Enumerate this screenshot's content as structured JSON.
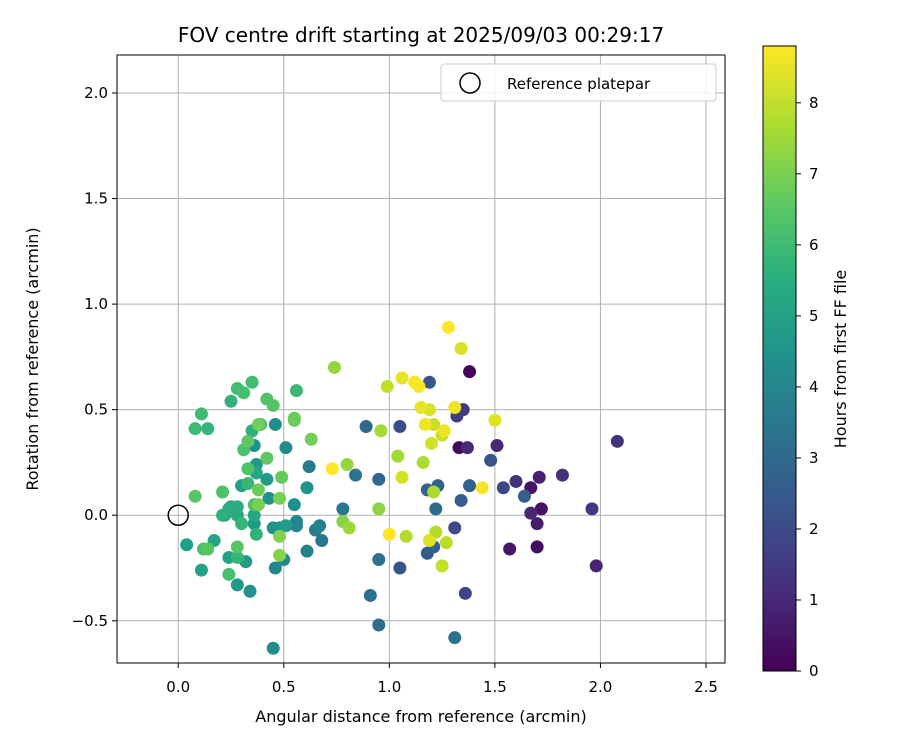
{
  "chart_data": {
    "type": "scatter",
    "title": "FOV centre drift starting at 2025/09/03 00:29:17",
    "xlabel": "Angular distance from reference (arcmin)",
    "ylabel": "Rotation from reference (arcmin)",
    "xlim": [
      -0.29,
      2.59
    ],
    "ylim": [
      -0.7,
      2.18
    ],
    "xticks": [
      0.0,
      0.5,
      1.0,
      1.5,
      2.0,
      2.5
    ],
    "xtick_labels": [
      "0.0",
      "0.5",
      "1.0",
      "1.5",
      "2.0",
      "2.5"
    ],
    "yticks": [
      -0.5,
      0.0,
      0.5,
      1.0,
      1.5,
      2.0
    ],
    "ytick_labels": [
      "−0.5",
      "0.0",
      "0.5",
      "1.0",
      "1.5",
      "2.0"
    ],
    "grid": true,
    "legend": {
      "position": "top-right",
      "entries": [
        "Reference platepar"
      ]
    },
    "reference_point": {
      "x": 0.0,
      "y": 0.0,
      "label": "Reference platepar"
    },
    "colorbar": {
      "label": "Hours from first FF file",
      "colormap": "viridis",
      "range": [
        0,
        8.8
      ],
      "ticks": [
        0,
        1,
        2,
        3,
        4,
        5,
        6,
        7,
        8
      ],
      "tick_labels": [
        "0",
        "1",
        "2",
        "3",
        "4",
        "5",
        "6",
        "7",
        "8"
      ]
    },
    "points": [
      {
        "x": 1.38,
        "y": 0.68,
        "h": 0.1
      },
      {
        "x": 1.33,
        "y": 0.32,
        "h": 0.2
      },
      {
        "x": 1.7,
        "y": -0.15,
        "h": 0.3
      },
      {
        "x": 1.72,
        "y": 0.03,
        "h": 0.4
      },
      {
        "x": 1.67,
        "y": 0.13,
        "h": 0.5
      },
      {
        "x": 1.57,
        "y": -0.16,
        "h": 0.6
      },
      {
        "x": 1.7,
        "y": -0.04,
        "h": 0.7
      },
      {
        "x": 1.71,
        "y": 0.18,
        "h": 0.8
      },
      {
        "x": 1.98,
        "y": -0.24,
        "h": 0.9
      },
      {
        "x": 1.51,
        "y": 0.33,
        "h": 1.0
      },
      {
        "x": 1.67,
        "y": 0.01,
        "h": 1.0
      },
      {
        "x": 1.37,
        "y": 0.32,
        "h": 1.1
      },
      {
        "x": 1.6,
        "y": 0.16,
        "h": 1.3
      },
      {
        "x": 1.82,
        "y": 0.19,
        "h": 1.3
      },
      {
        "x": 2.08,
        "y": 0.35,
        "h": 1.3
      },
      {
        "x": 1.96,
        "y": 0.03,
        "h": 1.4
      },
      {
        "x": 1.35,
        "y": 0.5,
        "h": 1.5
      },
      {
        "x": 1.32,
        "y": 0.47,
        "h": 1.6
      },
      {
        "x": 1.36,
        "y": -0.37,
        "h": 1.8
      },
      {
        "x": 1.54,
        "y": 0.13,
        "h": 1.9
      },
      {
        "x": 1.31,
        "y": -0.06,
        "h": 2.0
      },
      {
        "x": 1.05,
        "y": 0.42,
        "h": 2.1
      },
      {
        "x": 1.48,
        "y": 0.26,
        "h": 2.3
      },
      {
        "x": 1.05,
        "y": -0.25,
        "h": 2.3
      },
      {
        "x": 1.19,
        "y": 0.63,
        "h": 2.4
      },
      {
        "x": 1.18,
        "y": -0.18,
        "h": 2.5
      },
      {
        "x": 1.34,
        "y": 0.07,
        "h": 2.6
      },
      {
        "x": 1.64,
        "y": 0.09,
        "h": 2.6
      },
      {
        "x": 1.38,
        "y": 0.14,
        "h": 2.7
      },
      {
        "x": 1.21,
        "y": -0.15,
        "h": 2.7
      },
      {
        "x": 1.18,
        "y": 0.12,
        "h": 2.8
      },
      {
        "x": 1.23,
        "y": 0.14,
        "h": 2.8
      },
      {
        "x": 0.95,
        "y": 0.17,
        "h": 2.9
      },
      {
        "x": 0.89,
        "y": 0.42,
        "h": 3.0
      },
      {
        "x": 1.22,
        "y": 0.03,
        "h": 3.1
      },
      {
        "x": 0.95,
        "y": -0.52,
        "h": 3.1
      },
      {
        "x": 0.91,
        "y": -0.38,
        "h": 3.2
      },
      {
        "x": 0.95,
        "y": -0.21,
        "h": 3.3
      },
      {
        "x": 1.31,
        "y": -0.58,
        "h": 3.3
      },
      {
        "x": 0.84,
        "y": 0.19,
        "h": 3.4
      },
      {
        "x": 0.68,
        "y": -0.12,
        "h": 3.5
      },
      {
        "x": 0.78,
        "y": 0.03,
        "h": 3.5
      },
      {
        "x": 0.62,
        "y": 0.23,
        "h": 3.6
      },
      {
        "x": 0.65,
        "y": -0.07,
        "h": 3.7
      },
      {
        "x": 0.67,
        "y": -0.05,
        "h": 3.8
      },
      {
        "x": 0.61,
        "y": -0.17,
        "h": 3.9
      },
      {
        "x": 0.56,
        "y": -0.03,
        "h": 4.0
      },
      {
        "x": 0.56,
        "y": -0.05,
        "h": 4.0
      },
      {
        "x": 0.46,
        "y": -0.25,
        "h": 4.1
      },
      {
        "x": 0.5,
        "y": -0.21,
        "h": 4.1
      },
      {
        "x": 0.45,
        "y": -0.63,
        "h": 4.2
      },
      {
        "x": 0.51,
        "y": 0.32,
        "h": 4.2
      },
      {
        "x": 0.48,
        "y": -0.06,
        "h": 4.3
      },
      {
        "x": 0.46,
        "y": 0.43,
        "h": 4.3
      },
      {
        "x": 0.36,
        "y": 0.33,
        "h": 4.4
      },
      {
        "x": 0.55,
        "y": 0.05,
        "h": 4.4
      },
      {
        "x": 0.43,
        "y": 0.08,
        "h": 4.5
      },
      {
        "x": 0.61,
        "y": 0.13,
        "h": 4.5
      },
      {
        "x": 0.34,
        "y": -0.36,
        "h": 4.5
      },
      {
        "x": 0.45,
        "y": -0.06,
        "h": 4.6
      },
      {
        "x": 0.36,
        "y": -0.04,
        "h": 4.7
      },
      {
        "x": 0.37,
        "y": 0.24,
        "h": 4.7
      },
      {
        "x": 0.32,
        "y": -0.22,
        "h": 4.8
      },
      {
        "x": 0.28,
        "y": -0.33,
        "h": 4.8
      },
      {
        "x": 0.51,
        "y": -0.05,
        "h": 4.9
      },
      {
        "x": 0.42,
        "y": 0.17,
        "h": 4.9
      },
      {
        "x": 0.3,
        "y": 0.14,
        "h": 5.0
      },
      {
        "x": 0.04,
        "y": -0.14,
        "h": 5.0
      },
      {
        "x": 0.11,
        "y": -0.26,
        "h": 5.1
      },
      {
        "x": 0.24,
        "y": -0.2,
        "h": 5.1
      },
      {
        "x": 0.17,
        "y": -0.12,
        "h": 5.2
      },
      {
        "x": 0.22,
        "y": 0.0,
        "h": 5.2
      },
      {
        "x": 0.36,
        "y": 0.0,
        "h": 5.3
      },
      {
        "x": 0.37,
        "y": 0.2,
        "h": 5.3
      },
      {
        "x": 0.28,
        "y": 0.0,
        "h": 5.4
      },
      {
        "x": 0.25,
        "y": 0.04,
        "h": 5.4
      },
      {
        "x": 0.28,
        "y": 0.04,
        "h": 5.5
      },
      {
        "x": 0.24,
        "y": 0.03,
        "h": 5.5
      },
      {
        "x": 0.35,
        "y": 0.4,
        "h": 5.6
      },
      {
        "x": 0.21,
        "y": 0.0,
        "h": 5.6
      },
      {
        "x": 0.37,
        "y": -0.09,
        "h": 5.7
      },
      {
        "x": 0.25,
        "y": 0.54,
        "h": 5.7
      },
      {
        "x": 0.14,
        "y": 0.41,
        "h": 5.8
      },
      {
        "x": 0.28,
        "y": -0.2,
        "h": 5.8
      },
      {
        "x": 0.3,
        "y": -0.04,
        "h": 5.8
      },
      {
        "x": 0.33,
        "y": 0.15,
        "h": 5.9
      },
      {
        "x": 0.56,
        "y": 0.59,
        "h": 5.9
      },
      {
        "x": 0.08,
        "y": 0.41,
        "h": 6.0
      },
      {
        "x": 0.11,
        "y": 0.48,
        "h": 6.0
      },
      {
        "x": 0.39,
        "y": 0.43,
        "h": 6.1
      },
      {
        "x": 0.28,
        "y": 0.6,
        "h": 6.1
      },
      {
        "x": 0.35,
        "y": 0.63,
        "h": 6.1
      },
      {
        "x": 0.31,
        "y": 0.58,
        "h": 6.2
      },
      {
        "x": 0.24,
        "y": -0.28,
        "h": 6.2
      },
      {
        "x": 0.12,
        "y": -0.16,
        "h": 6.2
      },
      {
        "x": 0.21,
        "y": 0.11,
        "h": 6.3
      },
      {
        "x": 0.31,
        "y": 0.31,
        "h": 6.3
      },
      {
        "x": 0.36,
        "y": 0.05,
        "h": 6.3
      },
      {
        "x": 0.33,
        "y": 0.22,
        "h": 6.4
      },
      {
        "x": 0.42,
        "y": 0.55,
        "h": 6.4
      },
      {
        "x": 0.45,
        "y": 0.52,
        "h": 6.4
      },
      {
        "x": 0.08,
        "y": 0.09,
        "h": 6.5
      },
      {
        "x": 0.14,
        "y": -0.16,
        "h": 6.5
      },
      {
        "x": 0.28,
        "y": -0.15,
        "h": 6.5
      },
      {
        "x": 0.33,
        "y": 0.35,
        "h": 6.6
      },
      {
        "x": 0.42,
        "y": 0.27,
        "h": 6.6
      },
      {
        "x": 0.55,
        "y": 0.45,
        "h": 6.7
      },
      {
        "x": 0.49,
        "y": 0.18,
        "h": 6.7
      },
      {
        "x": 0.38,
        "y": 0.12,
        "h": 6.8
      },
      {
        "x": 0.55,
        "y": 0.46,
        "h": 6.8
      },
      {
        "x": 0.63,
        "y": 0.36,
        "h": 6.9
      },
      {
        "x": 0.38,
        "y": 0.43,
        "h": 6.9
      },
      {
        "x": 0.38,
        "y": 0.05,
        "h": 7.0
      },
      {
        "x": 0.48,
        "y": 0.08,
        "h": 7.0
      },
      {
        "x": 0.48,
        "y": -0.1,
        "h": 7.1
      },
      {
        "x": 0.48,
        "y": -0.19,
        "h": 7.2
      },
      {
        "x": 0.78,
        "y": -0.03,
        "h": 7.2
      },
      {
        "x": 0.95,
        "y": 0.03,
        "h": 7.3
      },
      {
        "x": 0.74,
        "y": 0.7,
        "h": 7.4
      },
      {
        "x": 0.8,
        "y": 0.24,
        "h": 7.4
      },
      {
        "x": 0.81,
        "y": -0.06,
        "h": 7.5
      },
      {
        "x": 0.96,
        "y": 0.4,
        "h": 7.6
      },
      {
        "x": 1.04,
        "y": 0.28,
        "h": 7.6
      },
      {
        "x": 1.21,
        "y": 0.11,
        "h": 7.7
      },
      {
        "x": 1.16,
        "y": 0.25,
        "h": 7.7
      },
      {
        "x": 1.08,
        "y": -0.1,
        "h": 7.8
      },
      {
        "x": 1.22,
        "y": -0.08,
        "h": 7.8
      },
      {
        "x": 1.27,
        "y": -0.13,
        "h": 7.9
      },
      {
        "x": 1.25,
        "y": -0.24,
        "h": 8.0
      },
      {
        "x": 0.99,
        "y": 0.61,
        "h": 8.0
      },
      {
        "x": 1.21,
        "y": 0.43,
        "h": 8.1
      },
      {
        "x": 1.25,
        "y": 0.38,
        "h": 8.1
      },
      {
        "x": 1.06,
        "y": 0.18,
        "h": 8.2
      },
      {
        "x": 1.2,
        "y": 0.34,
        "h": 8.2
      },
      {
        "x": 1.19,
        "y": 0.5,
        "h": 8.3
      },
      {
        "x": 1.34,
        "y": 0.79,
        "h": 8.3
      },
      {
        "x": 1.5,
        "y": 0.45,
        "h": 8.4
      },
      {
        "x": 1.19,
        "y": -0.12,
        "h": 8.4
      },
      {
        "x": 1.06,
        "y": 0.65,
        "h": 8.5
      },
      {
        "x": 1.15,
        "y": 0.51,
        "h": 8.5
      },
      {
        "x": 1.17,
        "y": 0.43,
        "h": 8.6
      },
      {
        "x": 1.31,
        "y": 0.51,
        "h": 8.6
      },
      {
        "x": 1.26,
        "y": 0.4,
        "h": 8.6
      },
      {
        "x": 1.12,
        "y": 0.63,
        "h": 8.7
      },
      {
        "x": 1.14,
        "y": 0.61,
        "h": 8.7
      },
      {
        "x": 1.44,
        "y": 0.13,
        "h": 8.7
      },
      {
        "x": 0.73,
        "y": 0.22,
        "h": 8.8
      },
      {
        "x": 1.28,
        "y": 0.89,
        "h": 8.8
      },
      {
        "x": 1.0,
        "y": -0.09,
        "h": 8.8
      }
    ]
  }
}
